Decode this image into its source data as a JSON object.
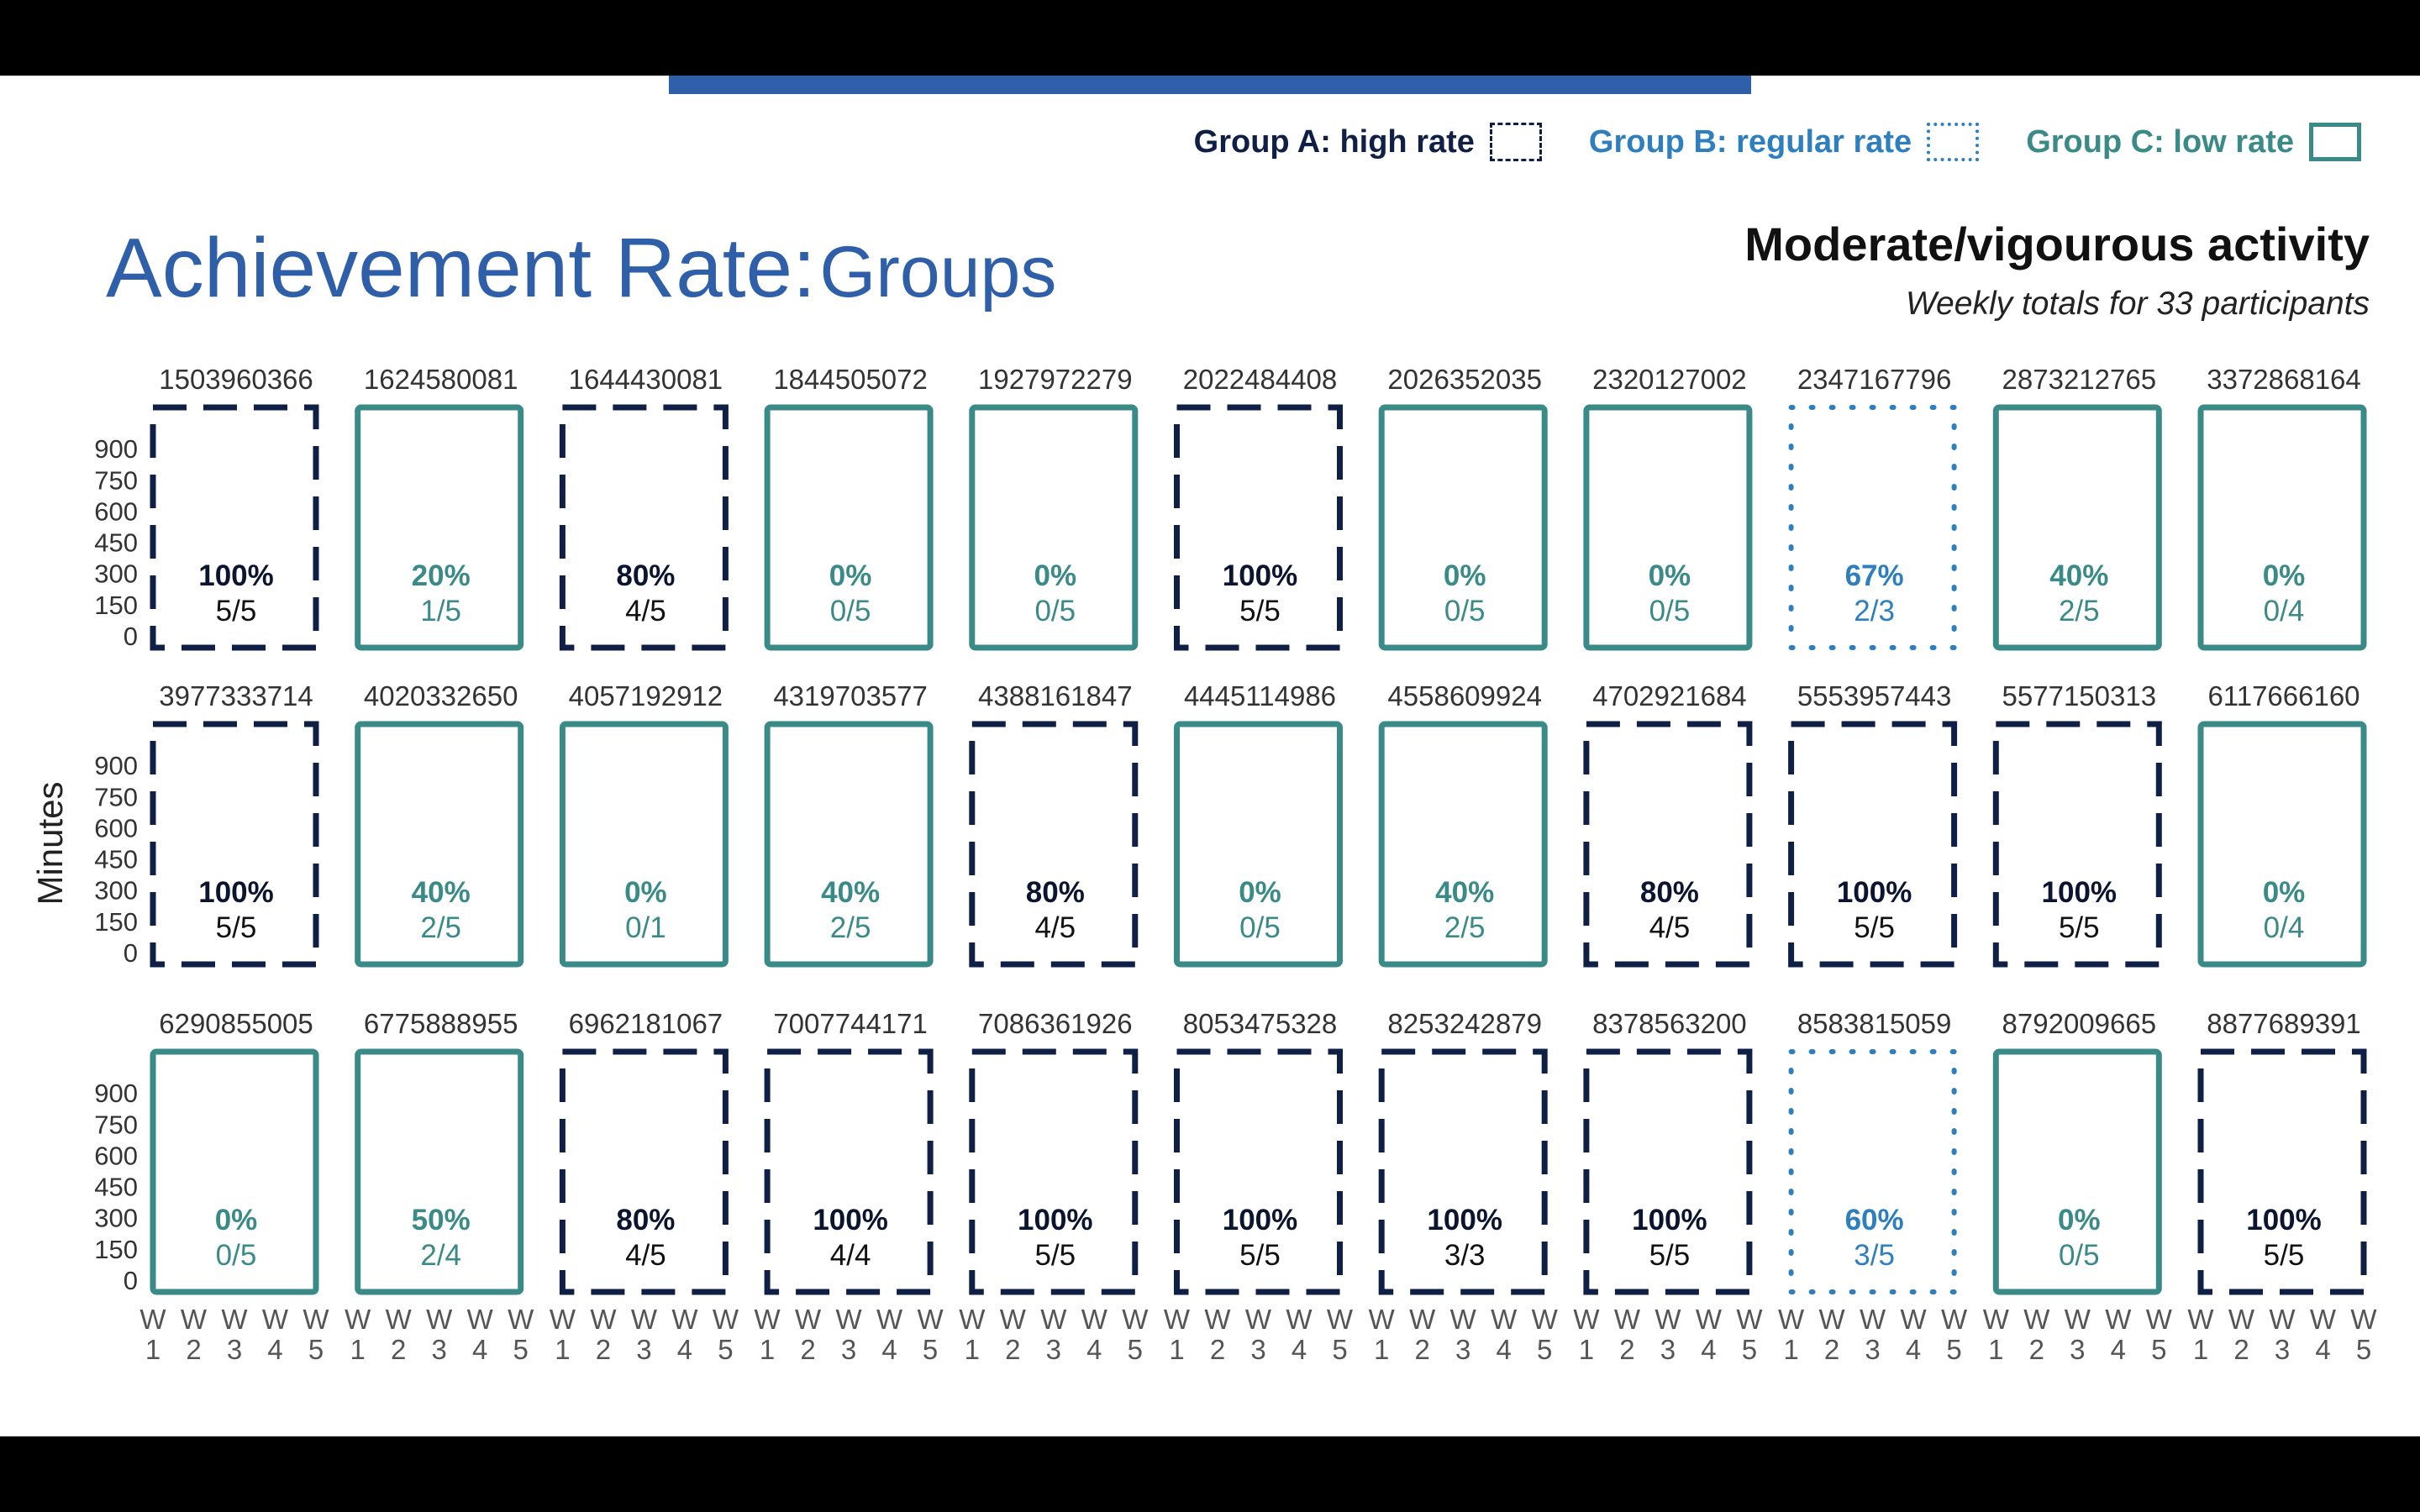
{
  "legend": {
    "a_label": "Group A: high rate",
    "b_label": "Group B: regular rate",
    "c_label": "Group C: low rate"
  },
  "title": {
    "main": "Achievement Rate:",
    "sub": "Groups"
  },
  "heading": {
    "title": "Moderate/vigourous activity",
    "subtitle": "Weekly totals for 33 participants"
  },
  "colors": {
    "group_a": "#0f1f45",
    "group_b": "#2e7fbf",
    "group_c": "#3a8a88",
    "accent": "#2f5fa8"
  },
  "chart_data": {
    "type": "bar",
    "ylabel": "Minutes",
    "y_ticks": [
      0,
      150,
      300,
      450,
      600,
      750,
      900
    ],
    "ylim": [
      0,
      1050
    ],
    "x_ticks": [
      {
        "top": "W",
        "bottom": "1"
      },
      {
        "top": "W",
        "bottom": "2"
      },
      {
        "top": "W",
        "bottom": "3"
      },
      {
        "top": "W",
        "bottom": "4"
      },
      {
        "top": "W",
        "bottom": "5"
      }
    ],
    "panels": [
      {
        "id": "1503960366",
        "group": "A",
        "rate": "100%",
        "fraction": "5/5"
      },
      {
        "id": "1624580081",
        "group": "C",
        "rate": "20%",
        "fraction": "1/5"
      },
      {
        "id": "1644430081",
        "group": "A",
        "rate": "80%",
        "fraction": "4/5"
      },
      {
        "id": "1844505072",
        "group": "C",
        "rate": "0%",
        "fraction": "0/5"
      },
      {
        "id": "1927972279",
        "group": "C",
        "rate": "0%",
        "fraction": "0/5"
      },
      {
        "id": "2022484408",
        "group": "A",
        "rate": "100%",
        "fraction": "5/5"
      },
      {
        "id": "2026352035",
        "group": "C",
        "rate": "0%",
        "fraction": "0/5"
      },
      {
        "id": "2320127002",
        "group": "C",
        "rate": "0%",
        "fraction": "0/5"
      },
      {
        "id": "2347167796",
        "group": "B",
        "rate": "67%",
        "fraction": "2/3"
      },
      {
        "id": "2873212765",
        "group": "C",
        "rate": "40%",
        "fraction": "2/5"
      },
      {
        "id": "3372868164",
        "group": "C",
        "rate": "0%",
        "fraction": "0/4"
      },
      {
        "id": "3977333714",
        "group": "A",
        "rate": "100%",
        "fraction": "5/5"
      },
      {
        "id": "4020332650",
        "group": "C",
        "rate": "40%",
        "fraction": "2/5"
      },
      {
        "id": "4057192912",
        "group": "C",
        "rate": "0%",
        "fraction": "0/1"
      },
      {
        "id": "4319703577",
        "group": "C",
        "rate": "40%",
        "fraction": "2/5"
      },
      {
        "id": "4388161847",
        "group": "A",
        "rate": "80%",
        "fraction": "4/5"
      },
      {
        "id": "4445114986",
        "group": "C",
        "rate": "0%",
        "fraction": "0/5"
      },
      {
        "id": "4558609924",
        "group": "C",
        "rate": "40%",
        "fraction": "2/5"
      },
      {
        "id": "4702921684",
        "group": "A",
        "rate": "80%",
        "fraction": "4/5"
      },
      {
        "id": "5553957443",
        "group": "A",
        "rate": "100%",
        "fraction": "5/5"
      },
      {
        "id": "5577150313",
        "group": "A",
        "rate": "100%",
        "fraction": "5/5"
      },
      {
        "id": "6117666160",
        "group": "C",
        "rate": "0%",
        "fraction": "0/4"
      },
      {
        "id": "6290855005",
        "group": "C",
        "rate": "0%",
        "fraction": "0/5"
      },
      {
        "id": "6775888955",
        "group": "C",
        "rate": "50%",
        "fraction": "2/4"
      },
      {
        "id": "6962181067",
        "group": "A",
        "rate": "80%",
        "fraction": "4/5"
      },
      {
        "id": "7007744171",
        "group": "A",
        "rate": "100%",
        "fraction": "4/4"
      },
      {
        "id": "7086361926",
        "group": "A",
        "rate": "100%",
        "fraction": "5/5"
      },
      {
        "id": "8053475328",
        "group": "A",
        "rate": "100%",
        "fraction": "5/5"
      },
      {
        "id": "8253242879",
        "group": "A",
        "rate": "100%",
        "fraction": "3/3"
      },
      {
        "id": "8378563200",
        "group": "A",
        "rate": "100%",
        "fraction": "5/5"
      },
      {
        "id": "8583815059",
        "group": "B",
        "rate": "60%",
        "fraction": "3/5"
      },
      {
        "id": "8792009665",
        "group": "C",
        "rate": "0%",
        "fraction": "0/5"
      },
      {
        "id": "8877689391",
        "group": "A",
        "rate": "100%",
        "fraction": "5/5"
      }
    ]
  }
}
